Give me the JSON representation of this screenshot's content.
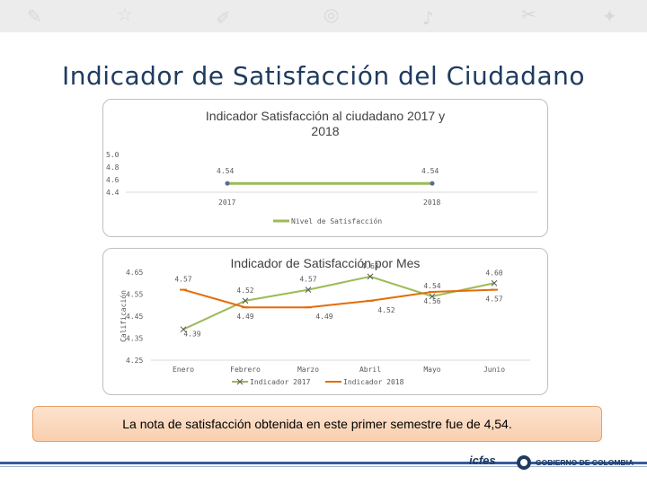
{
  "slide": {
    "title": "Indicador de Satisfacción del Ciudadano",
    "note": "La nota de satisfacción obtenida en este primer semestre fue de 4,54.",
    "logos": {
      "icfes": "icfes",
      "gov": "GOBIERNO DE COLOMBIA"
    }
  },
  "chart_data": [
    {
      "type": "line",
      "title": "Indicador Satisfacción al ciudadano 2017 y 2018",
      "title_line1": "Indicador Satisfacción al ciudadano 2017 y",
      "title_line2": "2018",
      "categories": [
        "2017",
        "2018"
      ],
      "series": [
        {
          "name": "Nivel de Satisfacción",
          "values": [
            4.54,
            4.54
          ],
          "color": "#9bbb59"
        }
      ],
      "yticks": [
        "5.0",
        "4.8",
        "4.6",
        "4.4"
      ],
      "ylim": [
        4.4,
        5.0
      ],
      "data_labels": [
        "4.54",
        "4.54"
      ],
      "legend": "bottom",
      "grid": false
    },
    {
      "type": "line",
      "title": "Indicador de Satisfacción por Mes",
      "ylabel": "Calificación",
      "categories": [
        "Enero",
        "Febrero",
        "Marzo",
        "Abril",
        "Mayo",
        "Junio"
      ],
      "series": [
        {
          "name": "Indicador 2017",
          "values": [
            4.39,
            4.52,
            4.57,
            4.63,
            4.54,
            4.6
          ],
          "color": "#9bbb59",
          "marker": "x"
        },
        {
          "name": "Indicador 2018",
          "values": [
            4.57,
            4.49,
            4.49,
            4.52,
            4.56,
            4.57
          ],
          "color": "#e46c0a",
          "marker": "-"
        }
      ],
      "yticks": [
        "4.65",
        "4.55",
        "4.45",
        "4.35",
        "4.25"
      ],
      "ylim": [
        4.25,
        4.65
      ],
      "legend": "bottom",
      "grid": false
    }
  ]
}
